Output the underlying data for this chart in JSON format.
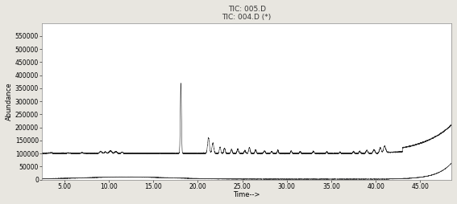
{
  "title_line1": "TIC: 005.D",
  "title_line2": "TIC: 004.D (*)",
  "xlabel": "Time-->",
  "ylabel": "Abundance",
  "xlim": [
    2.5,
    48.5
  ],
  "ylim": [
    0,
    600000
  ],
  "yticks": [
    0,
    50000,
    100000,
    150000,
    200000,
    250000,
    300000,
    350000,
    400000,
    450000,
    500000,
    550000
  ],
  "xticks": [
    5.0,
    10.0,
    15.0,
    20.0,
    25.0,
    30.0,
    35.0,
    40.0,
    45.0
  ],
  "bg_color": "#ffffff",
  "fig_bg_color": "#e8e6e0",
  "line_color": "#1a1a1a",
  "title_fontsize": 6.5,
  "axis_label_fontsize": 6,
  "tick_fontsize": 5.5
}
